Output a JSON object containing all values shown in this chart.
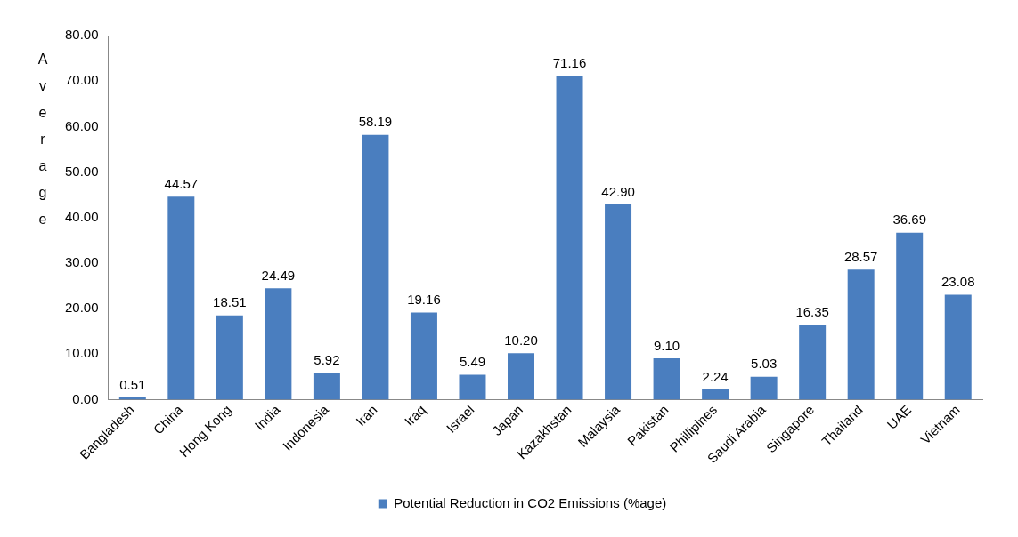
{
  "chart_data": {
    "type": "bar",
    "ylabel": "Average",
    "categories": [
      "Bangladesh",
      "China",
      "Hong Kong",
      "India",
      "Indonesia",
      "Iran",
      "Iraq",
      "Israel",
      "Japan",
      "Kazakhstan",
      "Malaysia",
      "Pakistan",
      "Phillipines",
      "Saudi Arabia",
      "Singapore",
      "Thailand",
      "UAE",
      "Vietnam"
    ],
    "series": [
      {
        "name": "Potential Reduction in CO2 Emissions (%age)",
        "color": "#4a7ebf",
        "values": [
          0.51,
          44.57,
          18.51,
          24.49,
          5.92,
          58.19,
          19.16,
          5.49,
          10.2,
          71.16,
          42.9,
          9.1,
          2.24,
          5.03,
          16.35,
          28.57,
          36.69,
          23.08
        ],
        "value_labels": [
          "0.51",
          "44.57",
          "18.51",
          "24.49",
          "5.92",
          "58.19",
          "19.16",
          "5.49",
          "10.20",
          "71.16",
          "42.90",
          "9.10",
          "2.24",
          "5.03",
          "16.35",
          "28.57",
          "36.69",
          "23.08"
        ]
      }
    ],
    "ylim": [
      0,
      80
    ],
    "yticks": [
      {
        "value": 0,
        "label": "0.00"
      },
      {
        "value": 10,
        "label": "10.00"
      },
      {
        "value": 20,
        "label": "20.00"
      },
      {
        "value": 30,
        "label": "30.00"
      },
      {
        "value": 40,
        "label": "40.00"
      },
      {
        "value": 50,
        "label": "50.00"
      },
      {
        "value": 60,
        "label": "60.00"
      },
      {
        "value": 70,
        "label": "70.00"
      },
      {
        "value": 80,
        "label": "80.00"
      }
    ],
    "grid": false,
    "legend": "bottom"
  }
}
